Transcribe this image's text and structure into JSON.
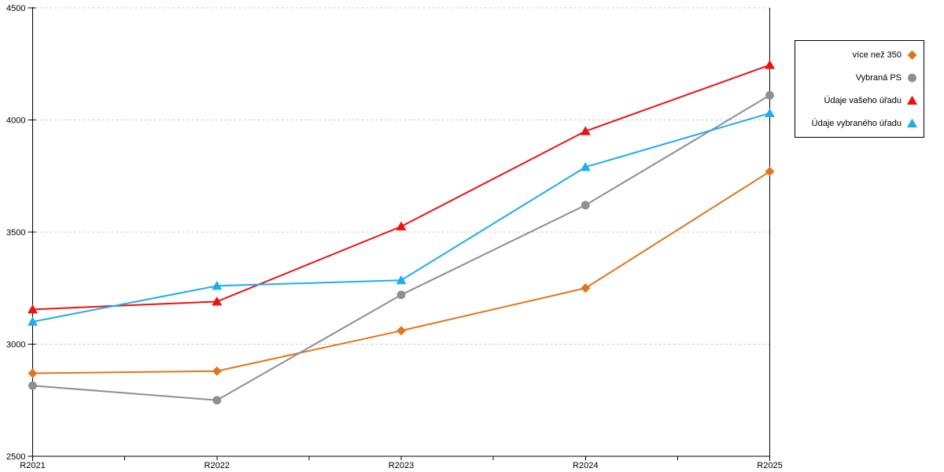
{
  "chart": {
    "background": "#ffffff",
    "axis_color": "#000000",
    "gridline_color": "#c9c9c9",
    "text_color": "#000000"
  },
  "chart_data": {
    "type": "line",
    "title": "",
    "xlabel": "",
    "ylabel": "",
    "categories": [
      "R2021",
      "R2022",
      "R2023",
      "R2024",
      "R2025"
    ],
    "series": [
      {
        "name": "více než 350",
        "marker": "diamond",
        "color": "#e0751a",
        "values": [
          2870,
          2880,
          3060,
          3250,
          3770
        ]
      },
      {
        "name": "Vybraná PS",
        "marker": "circle",
        "color": "#8f8f8f",
        "values": [
          2815,
          2750,
          3220,
          3620,
          4110
        ]
      },
      {
        "name": "Údaje vašeho úřadu",
        "marker": "triangle",
        "color": "#ee1111",
        "values": [
          3155,
          3190,
          3525,
          3950,
          4245
        ]
      },
      {
        "name": "Údaje vybraného úřadu",
        "marker": "triangle",
        "color": "#1faee9",
        "values": [
          3100,
          3260,
          3285,
          3790,
          4030
        ]
      }
    ],
    "ylim": [
      2500,
      4500
    ],
    "yticks": [
      2500,
      3000,
      3500,
      4000,
      4500
    ],
    "x_minor_ticks": "midpoints between years",
    "grid": "horizontal dashed gridlines at y ticks",
    "legend_position": "outside top-right, boxed, right-aligned labels with marker on right"
  }
}
